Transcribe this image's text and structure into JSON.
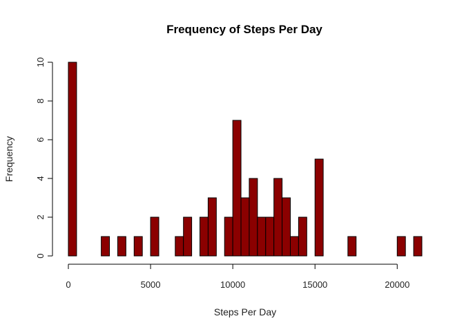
{
  "chart_data": {
    "type": "bar",
    "title": "Frequency of Steps Per Day",
    "xlabel": "Steps Per Day",
    "ylabel": "Frequency",
    "bin_width": 500,
    "x_range": [
      0,
      21500
    ],
    "xlim": [
      0,
      21500
    ],
    "ylim": [
      0,
      10
    ],
    "x_ticks": [
      0,
      5000,
      10000,
      15000,
      20000
    ],
    "y_ticks": [
      0,
      2,
      4,
      6,
      8,
      10
    ],
    "bar_color": "#8B0000",
    "bars": [
      {
        "x0": 0,
        "x1": 500,
        "count": 10
      },
      {
        "x0": 2000,
        "x1": 2500,
        "count": 1
      },
      {
        "x0": 3000,
        "x1": 3500,
        "count": 1
      },
      {
        "x0": 4000,
        "x1": 4500,
        "count": 1
      },
      {
        "x0": 5000,
        "x1": 5500,
        "count": 2
      },
      {
        "x0": 6500,
        "x1": 7000,
        "count": 1
      },
      {
        "x0": 7000,
        "x1": 7500,
        "count": 2
      },
      {
        "x0": 8000,
        "x1": 8500,
        "count": 2
      },
      {
        "x0": 8500,
        "x1": 9000,
        "count": 3
      },
      {
        "x0": 9500,
        "x1": 10000,
        "count": 2
      },
      {
        "x0": 10000,
        "x1": 10500,
        "count": 7
      },
      {
        "x0": 10500,
        "x1": 11000,
        "count": 3
      },
      {
        "x0": 11000,
        "x1": 11500,
        "count": 4
      },
      {
        "x0": 11500,
        "x1": 12000,
        "count": 2
      },
      {
        "x0": 12000,
        "x1": 12500,
        "count": 2
      },
      {
        "x0": 12500,
        "x1": 13000,
        "count": 4
      },
      {
        "x0": 13000,
        "x1": 13500,
        "count": 3
      },
      {
        "x0": 13500,
        "x1": 14000,
        "count": 1
      },
      {
        "x0": 14000,
        "x1": 14500,
        "count": 2
      },
      {
        "x0": 15000,
        "x1": 15500,
        "count": 5
      },
      {
        "x0": 17000,
        "x1": 17500,
        "count": 1
      },
      {
        "x0": 20000,
        "x1": 20500,
        "count": 1
      },
      {
        "x0": 21000,
        "x1": 21500,
        "count": 1
      }
    ]
  }
}
